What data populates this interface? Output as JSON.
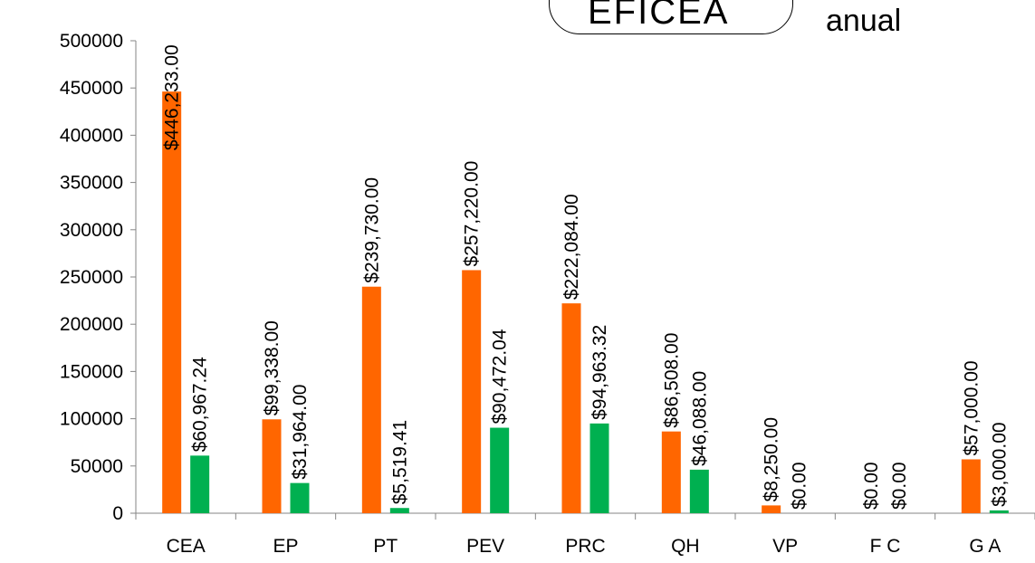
{
  "header": {
    "callout_text": "EFICEA",
    "side_text": "anual"
  },
  "chart_data": {
    "type": "bar",
    "categories": [
      "CEA",
      "EP",
      "PT",
      "PEV",
      "PRC",
      "QH",
      "VP",
      "F C",
      "G A"
    ],
    "series": [
      {
        "color": "#ff6600",
        "values": [
          446233.0,
          99338.0,
          239730.0,
          257220.0,
          222084.0,
          86508.0,
          8250.0,
          0.0,
          57000.0
        ],
        "labels": [
          "$446,233.00",
          "$99,338.00",
          "$239,730.00",
          "$257,220.00",
          "$222,084.00",
          "$86,508.00",
          "$8,250.00",
          "$0.00",
          "$57,000.00"
        ]
      },
      {
        "color": "#00b050",
        "values": [
          60967.24,
          31964.0,
          5519.41,
          90472.04,
          94963.32,
          46088.0,
          0.0,
          0.0,
          3000.0
        ],
        "labels": [
          "$60,967.24",
          "$31,964.00",
          "$5,519.41",
          "$90,472.04",
          "$94,963.32",
          "$46,088.00",
          "$0.00",
          "$0.00",
          "$3,000.00"
        ]
      }
    ],
    "y_ticks": [
      "0",
      "50000",
      "100000",
      "150000",
      "200000",
      "250000",
      "300000",
      "350000",
      "400000",
      "450000",
      "500000"
    ],
    "ylim": [
      0,
      500000
    ],
    "xlabel": "",
    "ylabel": "",
    "grid": false
  }
}
